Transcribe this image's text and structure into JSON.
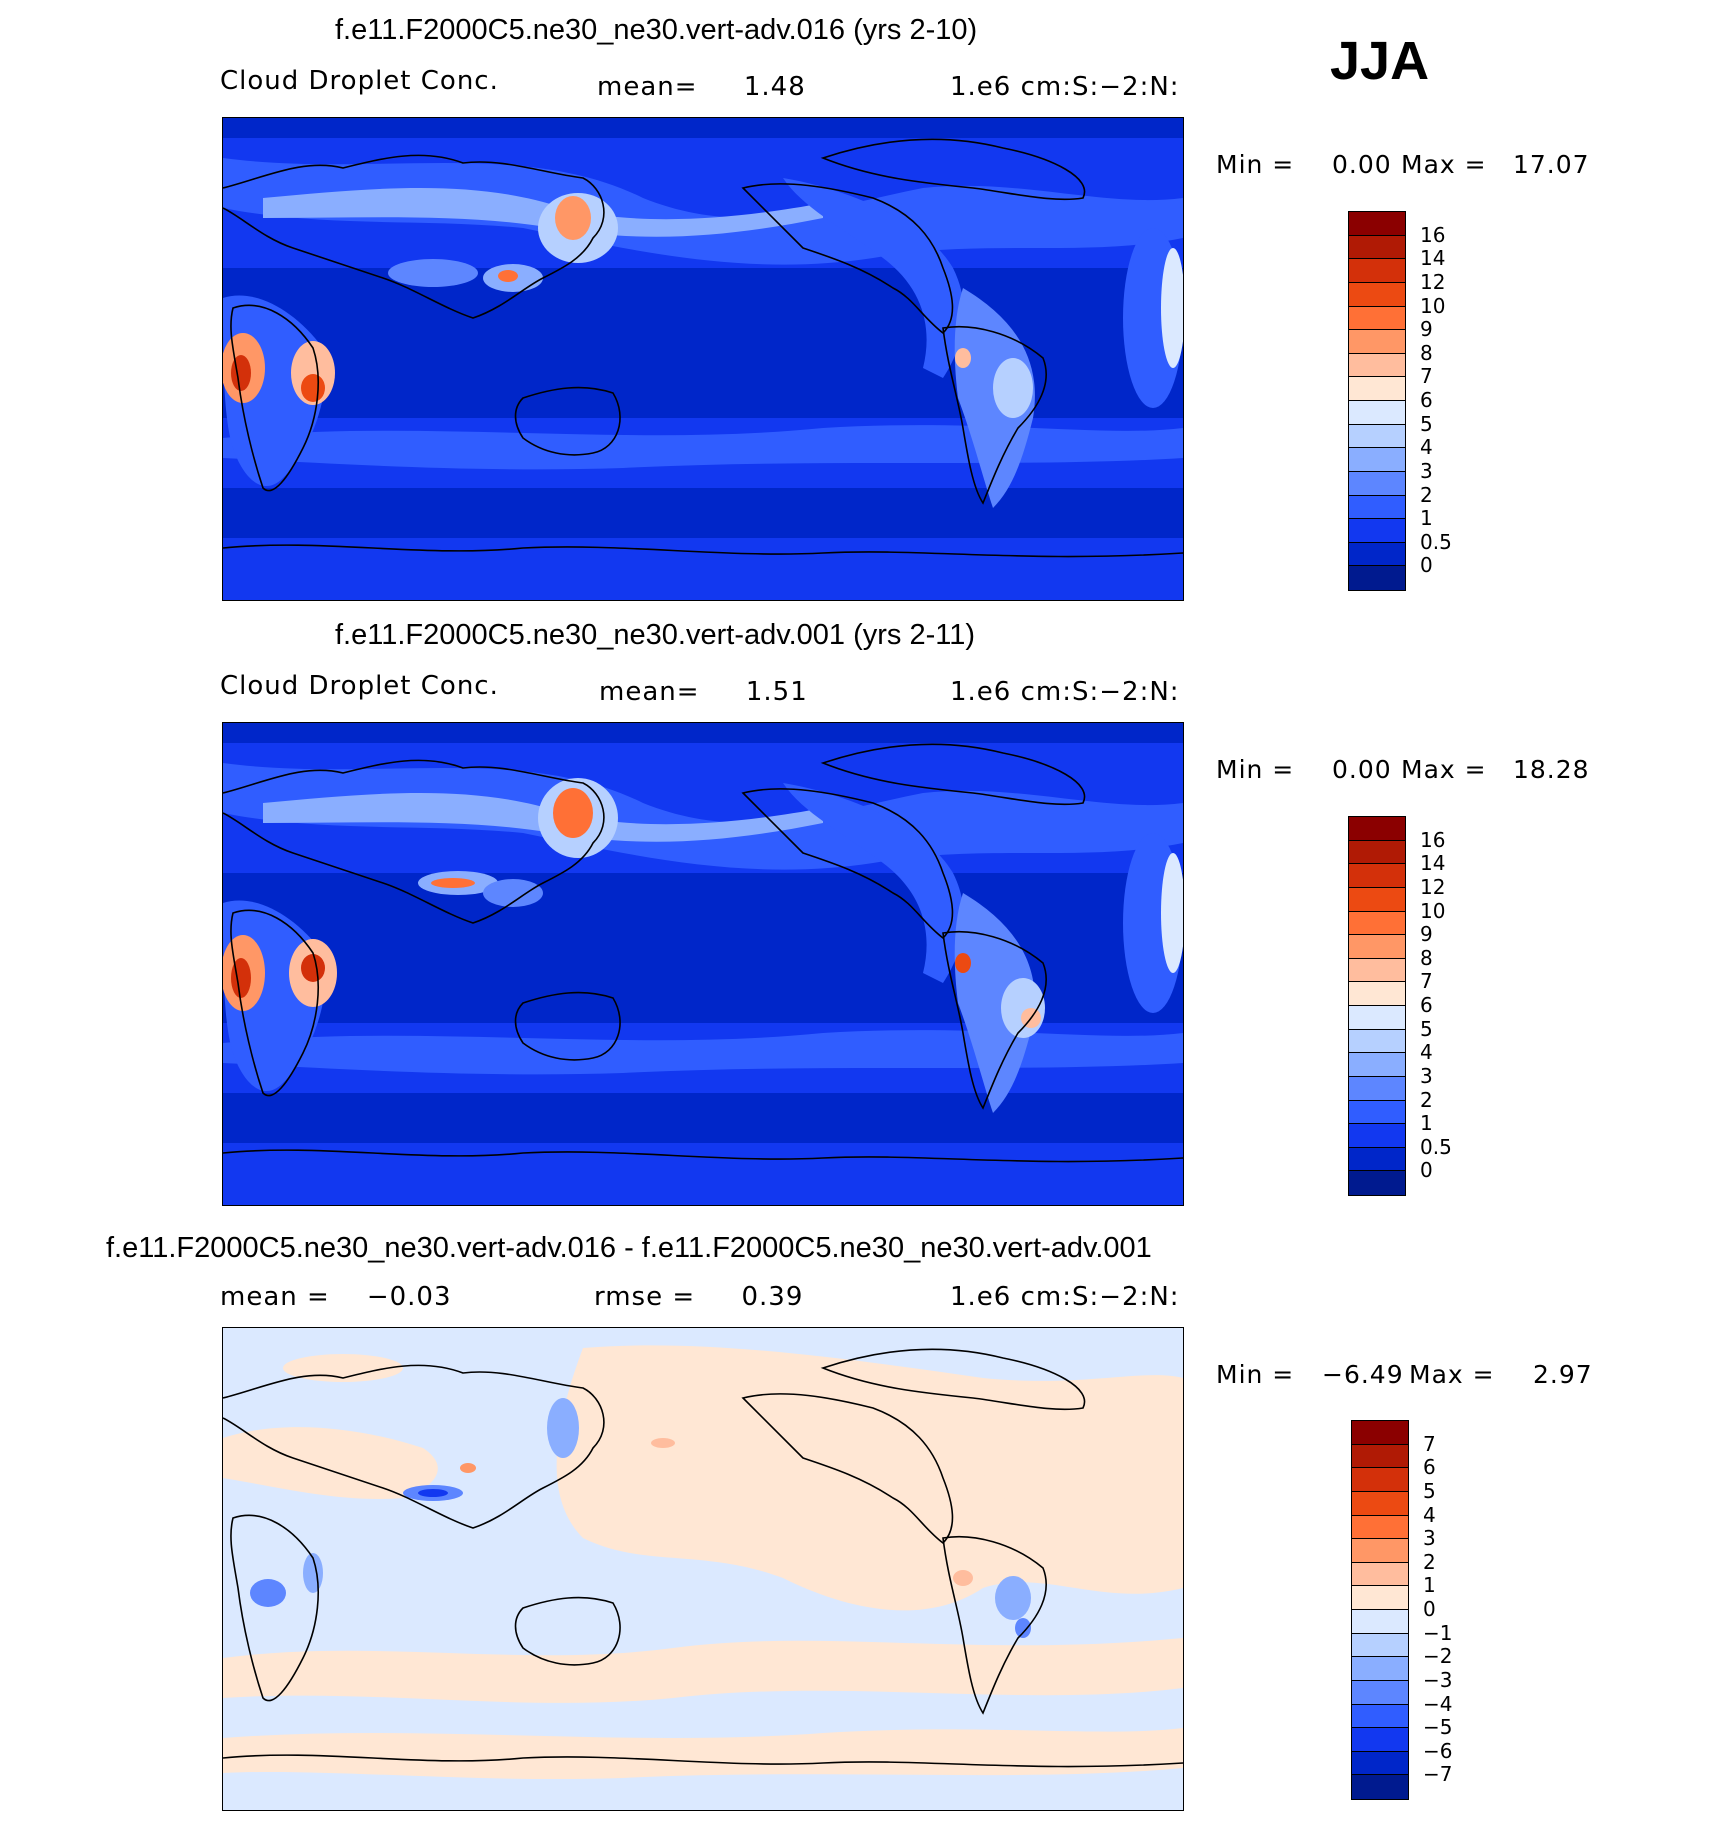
{
  "season_label": "JJA",
  "panels": [
    {
      "title": "f.e11.F2000C5.ne30_ne30.vert-adv.016 (yrs 2-10)",
      "left_label": "Cloud Droplet Conc.",
      "center_label": "mean=     1.48",
      "units": "1.e6 cm:S:−2:N:",
      "min_label": "Min =",
      "min_value": "0.00",
      "max_label": "Max =",
      "max_value": "17.07",
      "colorbar_labels": [
        "16",
        "14",
        "12",
        "10",
        "9",
        "8",
        "7",
        "6",
        "5",
        "4",
        "3",
        "2",
        "1",
        "0.5",
        "0"
      ],
      "colorbar_colors": [
        "#8b0000",
        "#b01a05",
        "#d3300a",
        "#ec4a12",
        "#ff7036",
        "#ff9766",
        "#ffbd9e",
        "#ffe7d4",
        "#dbe9ff",
        "#b6d0ff",
        "#8aaeff",
        "#5d86ff",
        "#305dff",
        "#1238f0",
        "#0026c9",
        "#001a8f"
      ]
    },
    {
      "title": "f.e11.F2000C5.ne30_ne30.vert-adv.001 (yrs 2-11)",
      "left_label": "Cloud Droplet Conc.",
      "center_label": "mean=     1.51",
      "units": "1.e6 cm:S:−2:N:",
      "min_label": "Min =",
      "min_value": "0.00",
      "max_label": "Max =",
      "max_value": "18.28",
      "colorbar_labels": [
        "16",
        "14",
        "12",
        "10",
        "9",
        "8",
        "7",
        "6",
        "5",
        "4",
        "3",
        "2",
        "1",
        "0.5",
        "0"
      ],
      "colorbar_colors": [
        "#8b0000",
        "#b01a05",
        "#d3300a",
        "#ec4a12",
        "#ff7036",
        "#ff9766",
        "#ffbd9e",
        "#ffe7d4",
        "#dbe9ff",
        "#b6d0ff",
        "#8aaeff",
        "#5d86ff",
        "#305dff",
        "#1238f0",
        "#0026c9",
        "#001a8f"
      ]
    },
    {
      "title": "f.e11.F2000C5.ne30_ne30.vert-adv.016 - f.e11.F2000C5.ne30_ne30.vert-adv.001",
      "left_label": "mean =    −0.03",
      "center_label": "rmse =     0.39",
      "units": "1.e6 cm:S:−2:N:",
      "min_label": "Min =",
      "min_value": "−6.49",
      "max_label": "Max =",
      "max_value": "2.97",
      "colorbar_labels": [
        "7",
        "6",
        "5",
        "4",
        "3",
        "2",
        "1",
        "0",
        "−1",
        "−2",
        "−3",
        "−4",
        "−5",
        "−6",
        "−7"
      ],
      "colorbar_colors": [
        "#8b0000",
        "#b01a05",
        "#d3300a",
        "#ec4a12",
        "#ff7036",
        "#ff9766",
        "#ffbd9e",
        "#ffe7d4",
        "#dbe9ff",
        "#b6d0ff",
        "#8aaeff",
        "#5d86ff",
        "#305dff",
        "#1238f0",
        "#0026c9",
        "#001a8f"
      ]
    }
  ]
}
